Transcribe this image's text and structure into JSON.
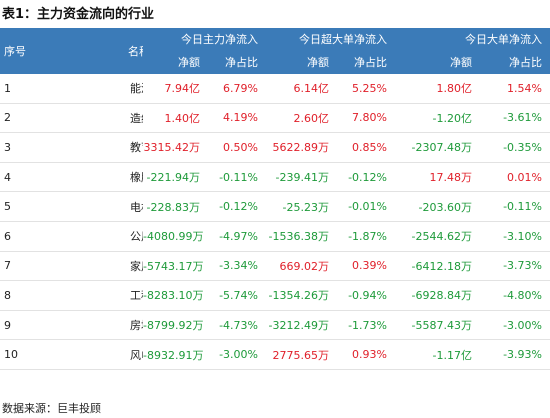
{
  "caption": "表1：主力资金流向的行业",
  "header": {
    "rank": "序号",
    "name": "名称",
    "groups": [
      "今日主力净流入",
      "今日超大单净流入",
      "今日大单净流入"
    ],
    "sub": [
      "净额",
      "净占比"
    ]
  },
  "rows": [
    {
      "rank": "1",
      "name": "能源金属",
      "v": [
        "7.94亿",
        "6.79%",
        "6.14亿",
        "5.25%",
        "1.80亿",
        "1.54%"
      ]
    },
    {
      "rank": "2",
      "name": "造纸印刷",
      "v": [
        "1.40亿",
        "4.19%",
        "2.60亿",
        "7.80%",
        "-1.20亿",
        "-3.61%"
      ]
    },
    {
      "rank": "3",
      "name": "教育",
      "v": [
        "3315.42万",
        "0.50%",
        "5622.89万",
        "0.85%",
        "-2307.48万",
        "-0.35%"
      ]
    },
    {
      "rank": "4",
      "name": "橡胶制品",
      "v": [
        "-221.94万",
        "-0.11%",
        "-239.41万",
        "-0.12%",
        "17.48万",
        "0.01%"
      ]
    },
    {
      "rank": "5",
      "name": "电机",
      "v": [
        "-228.83万",
        "-0.12%",
        "-25.23万",
        "-0.01%",
        "-203.60万",
        "-0.11%"
      ]
    },
    {
      "rank": "6",
      "name": "公用事业",
      "v": [
        "-4080.99万",
        "-4.97%",
        "-1536.38万",
        "-1.87%",
        "-2544.62万",
        "-3.10%"
      ]
    },
    {
      "rank": "7",
      "name": "家用轻工",
      "v": [
        "-5743.17万",
        "-3.34%",
        "669.02万",
        "0.39%",
        "-6412.18万",
        "-3.73%"
      ]
    },
    {
      "rank": "8",
      "name": "工程咨询服务",
      "v": [
        "-8283.10万",
        "-5.74%",
        "-1354.26万",
        "-0.94%",
        "-6928.84万",
        "-4.80%"
      ]
    },
    {
      "rank": "9",
      "name": "房地产服务",
      "v": [
        "-8799.92万",
        "-4.73%",
        "-3212.49万",
        "-1.73%",
        "-5587.43万",
        "-3.00%"
      ]
    },
    {
      "rank": "10",
      "name": "风电设备",
      "v": [
        "-8932.91万",
        "-3.00%",
        "2775.65万",
        "0.93%",
        "-1.17亿",
        "-3.93%"
      ]
    }
  ],
  "colors": {
    "header_bg": "#3b7bb8",
    "positive": "#e0202a",
    "negative": "#1e9a3a"
  },
  "footer": "数据来源：巨丰投顾"
}
